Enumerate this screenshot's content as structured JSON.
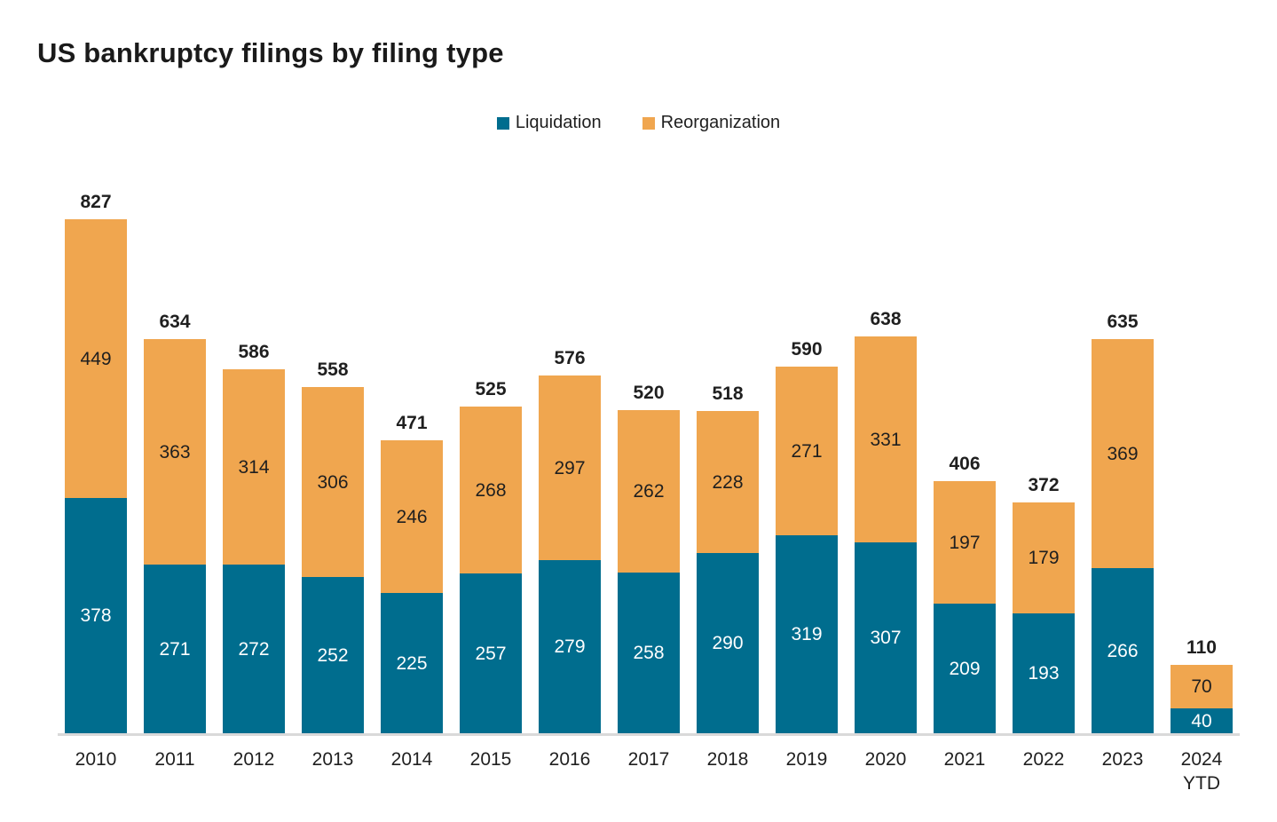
{
  "title": "US bankruptcy filings by filing type",
  "legend": {
    "items": [
      {
        "label": "Liquidation",
        "color": "#006d8e"
      },
      {
        "label": "Reorganization",
        "color": "#f0a64f"
      }
    ]
  },
  "chart_data": {
    "type": "bar",
    "stacked": true,
    "title": "US bankruptcy filings by filing type",
    "categories": [
      "2010",
      "2011",
      "2012",
      "2013",
      "2014",
      "2015",
      "2016",
      "2017",
      "2018",
      "2019",
      "2020",
      "2021",
      "2022",
      "2023",
      "2024 YTD"
    ],
    "series": [
      {
        "name": "Liquidation",
        "color": "#006d8e",
        "label_color": "#ffffff",
        "values": [
          378,
          271,
          272,
          252,
          225,
          257,
          279,
          258,
          290,
          319,
          307,
          209,
          193,
          266,
          40
        ]
      },
      {
        "name": "Reorganization",
        "color": "#f0a64f",
        "label_color": "#1f1f1f",
        "values": [
          449,
          363,
          314,
          306,
          246,
          268,
          297,
          262,
          228,
          271,
          331,
          197,
          179,
          369,
          70
        ]
      }
    ],
    "totals": [
      827,
      634,
      586,
      558,
      471,
      525,
      576,
      520,
      518,
      590,
      638,
      406,
      372,
      635,
      110
    ],
    "ylim": [
      0,
      827
    ],
    "grid": false,
    "legend_position": "top",
    "axis_color": "#d9d9d9",
    "background": "#ffffff"
  }
}
